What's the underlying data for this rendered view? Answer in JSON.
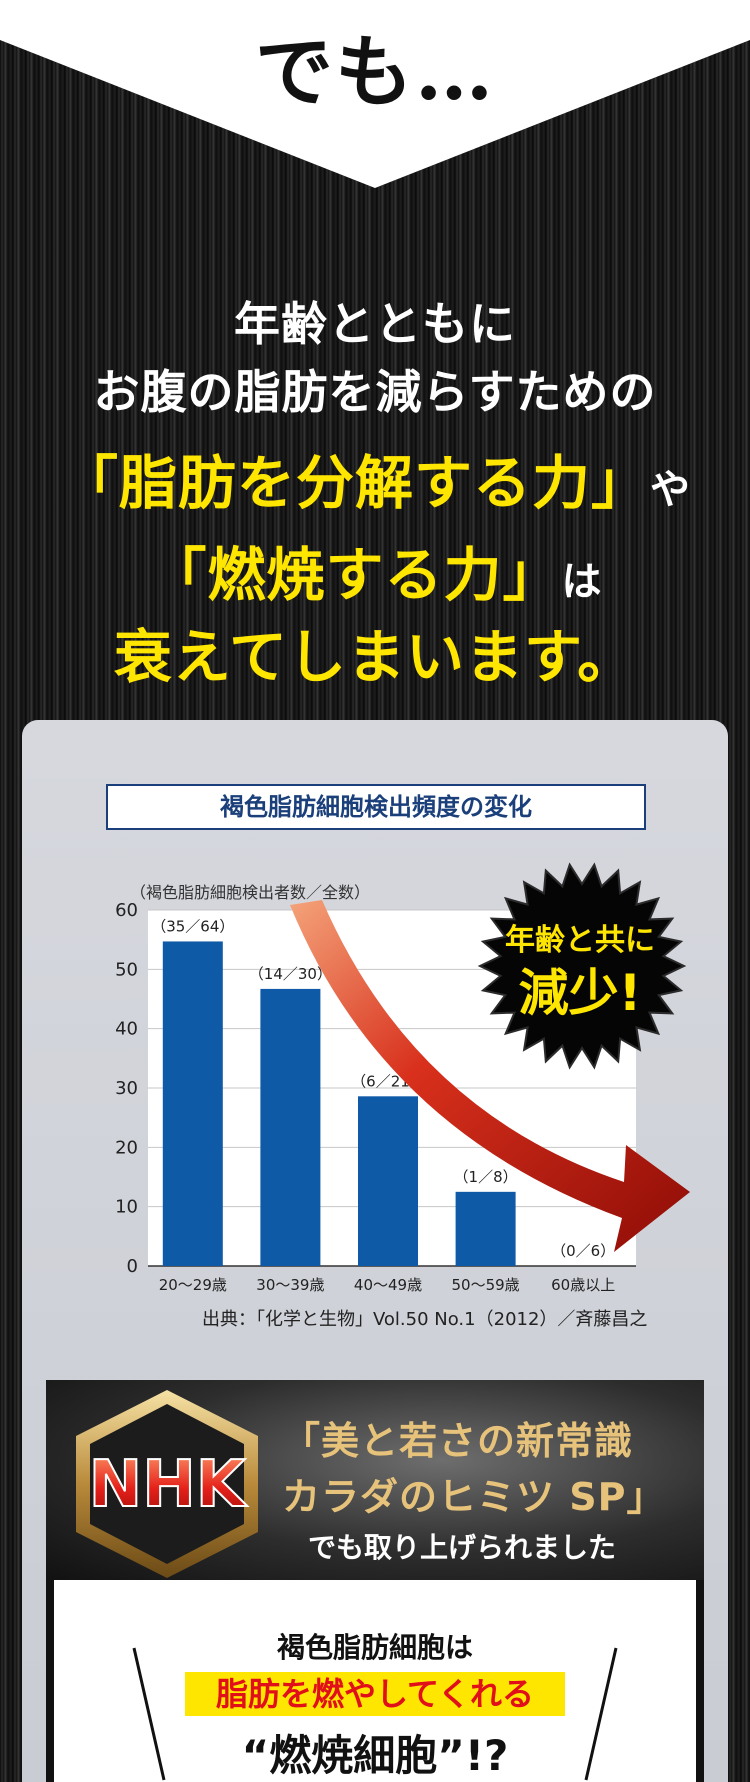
{
  "intro": {
    "de_mo": "でも…"
  },
  "headline": {
    "line1": "年齢とともに",
    "line2": "お腹の脂肪を減らすための",
    "line3_main": "「脂肪を分解する力」",
    "line3_suffix": "や",
    "line4_main": "「燃焼する力」",
    "line4_suffix": "は",
    "line5": "衰えてしまいます。"
  },
  "chart_data": {
    "type": "bar",
    "title": "褐色脂肪細胞検出頻度の変化",
    "ylabel": "（褐色脂肪細胞検出者数／全数）",
    "ylim": [
      0,
      60
    ],
    "yticks": [
      "0",
      "10",
      "20",
      "30",
      "40",
      "50",
      "60"
    ],
    "categories": [
      "20〜29歳",
      "30〜39歳",
      "40〜49歳",
      "50〜59歳",
      "60歳以上"
    ],
    "values": [
      54.7,
      46.7,
      28.6,
      12.5,
      0
    ],
    "data_labels": [
      "（35／64）",
      "（14／30）",
      "（6／21）",
      "（1／8）",
      "（0／6）"
    ],
    "bar_color": "#0e5aa7",
    "source": "出典：「化学と生物」Vol.50 No.1（2012）／斉藤昌之"
  },
  "badge": {
    "line1": "年齢と共に",
    "line2": "減少!"
  },
  "nhk": {
    "logo": "NHK",
    "line1": "「美と若さの新常識",
    "line2": "カラダのヒミツ SP」",
    "line3": "でも取り上げられました"
  },
  "card": {
    "line1": "褐色脂肪細胞は",
    "line2": "脂肪を燃やしてくれる",
    "line3": "“燃焼細胞”!?"
  },
  "colors": {
    "accent_yellow": "#ffe600",
    "accent_red": "#e10f1a",
    "chart_blue": "#0e5aa7",
    "title_navy": "#1a3f7a"
  }
}
